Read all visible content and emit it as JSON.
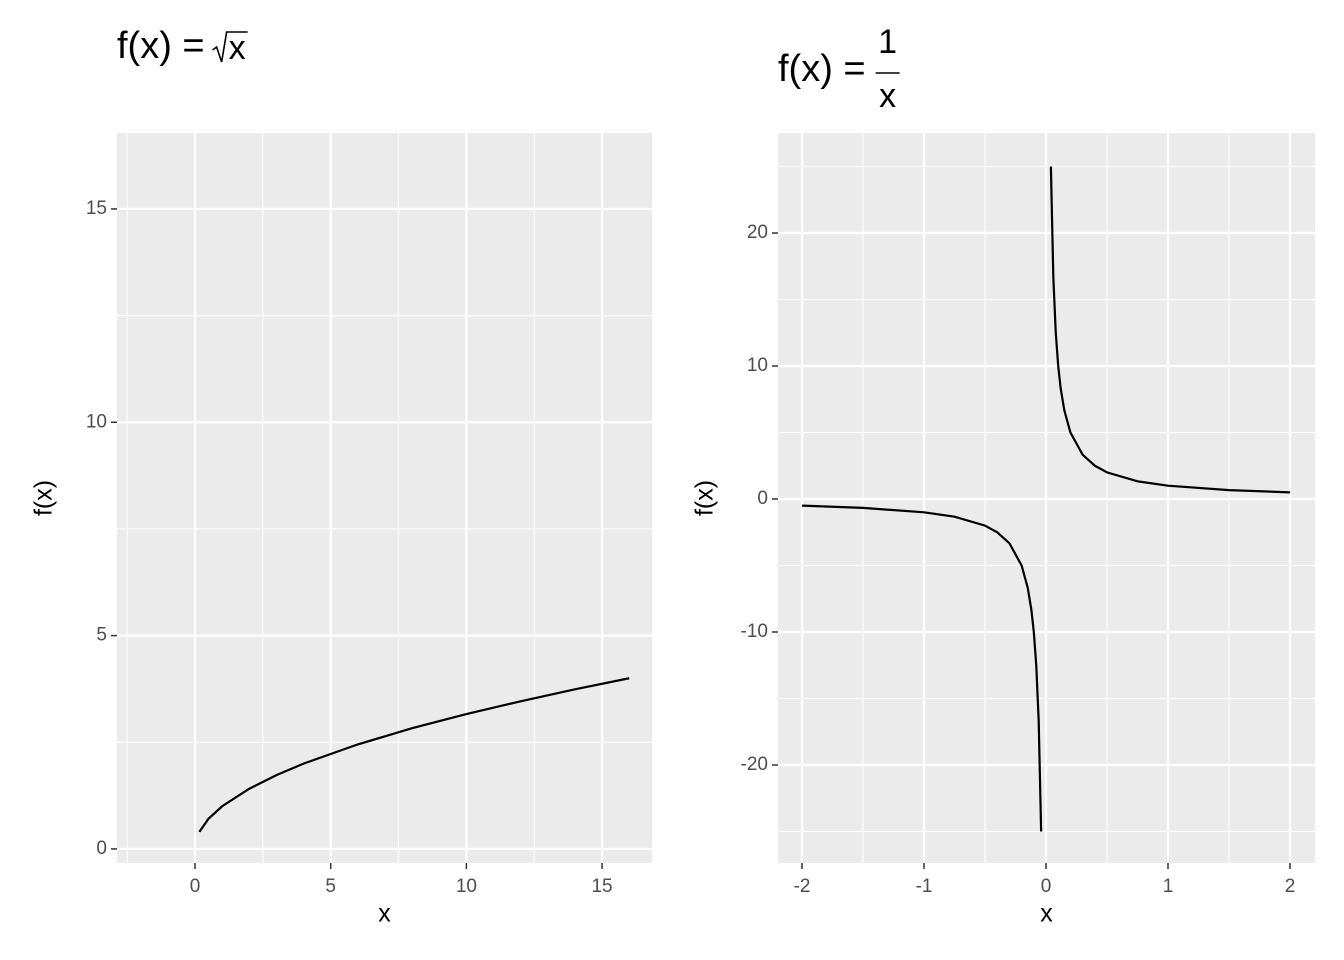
{
  "chart_data": [
    {
      "type": "line",
      "title": {
        "lhs": "f(x) =",
        "radicand": "x"
      },
      "xlabel": "x",
      "ylabel": "f(x)",
      "x": [
        0.16,
        0.5,
        1,
        2,
        3,
        4,
        6,
        8,
        10,
        12,
        14,
        16
      ],
      "values": [
        0.4,
        0.71,
        1,
        1.41,
        1.73,
        2,
        2.45,
        2.83,
        3.16,
        3.46,
        3.74,
        4
      ],
      "color": "#000000",
      "xlim": [
        -2.875,
        16.84
      ],
      "ylim": [
        -0.33,
        16.78
      ],
      "xticks": [
        0,
        5,
        10,
        15
      ],
      "yticks": [
        0,
        5,
        10,
        15
      ],
      "x_minor_ticks": [
        -2.5,
        2.5,
        7.5,
        12.5
      ],
      "y_minor_ticks": [
        2.5,
        7.5,
        12.5
      ],
      "grid": true
    },
    {
      "type": "line",
      "title": {
        "lhs": "f(x) =",
        "numerator": "1",
        "denominator": "x"
      },
      "xlabel": "x",
      "ylabel": "f(x)",
      "x": [
        -2,
        -1.5,
        -1,
        -0.75,
        -0.5,
        -0.4,
        -0.3,
        -0.2,
        -0.15,
        -0.12,
        -0.1,
        -0.08,
        -0.06,
        -0.04,
        0,
        0.04,
        0.06,
        0.08,
        0.1,
        0.12,
        0.15,
        0.2,
        0.3,
        0.4,
        0.5,
        0.75,
        1,
        1.5,
        2
      ],
      "values": [
        -0.5,
        -0.67,
        -1,
        -1.33,
        -2,
        -2.5,
        -3.33,
        -5,
        -6.67,
        -8.33,
        -10,
        -12.5,
        -16.67,
        -25,
        null,
        25,
        16.67,
        12.5,
        10,
        8.33,
        6.67,
        5,
        3.33,
        2.5,
        2,
        1.33,
        1,
        0.67,
        0.5
      ],
      "color": "#000000",
      "xlim": [
        -2.197,
        2.205
      ],
      "ylim": [
        -27.37,
        27.52
      ],
      "xticks": [
        -2,
        -1,
        0,
        1,
        2
      ],
      "yticks": [
        -20,
        -10,
        0,
        10,
        20
      ],
      "x_minor_ticks": [
        -1.5,
        -0.5,
        0.5,
        1.5
      ],
      "y_minor_ticks": [
        -25,
        -15,
        -5,
        5,
        15,
        25
      ],
      "grid": true
    }
  ]
}
